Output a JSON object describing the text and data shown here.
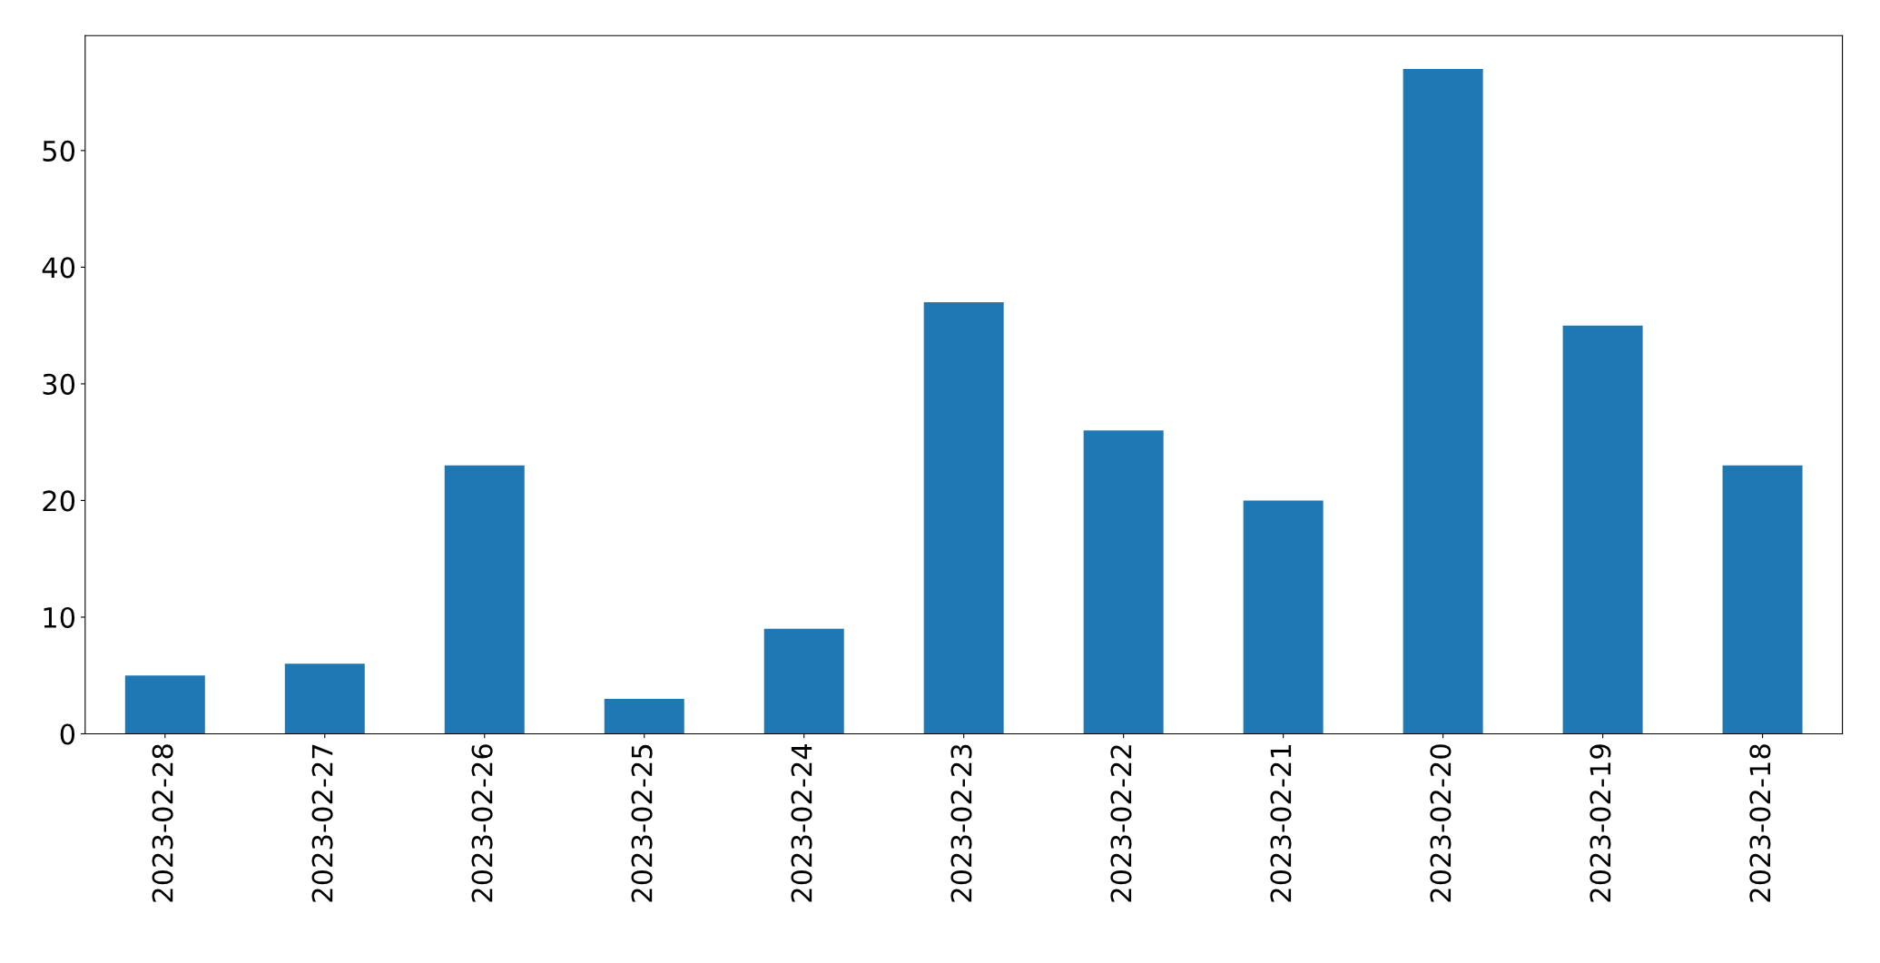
{
  "chart_data": {
    "type": "bar",
    "categories": [
      "2023-02-28",
      "2023-02-27",
      "2023-02-26",
      "2023-02-25",
      "2023-02-24",
      "2023-02-23",
      "2023-02-22",
      "2023-02-21",
      "2023-02-20",
      "2023-02-19",
      "2023-02-18"
    ],
    "values": [
      5,
      6,
      23,
      3,
      9,
      37,
      26,
      20,
      57,
      35,
      23
    ],
    "color": "#1f77b4",
    "ylim": [
      0,
      59.85
    ],
    "yticks": [
      0,
      10,
      20,
      30,
      40,
      50
    ],
    "grid": false,
    "legend": false
  }
}
